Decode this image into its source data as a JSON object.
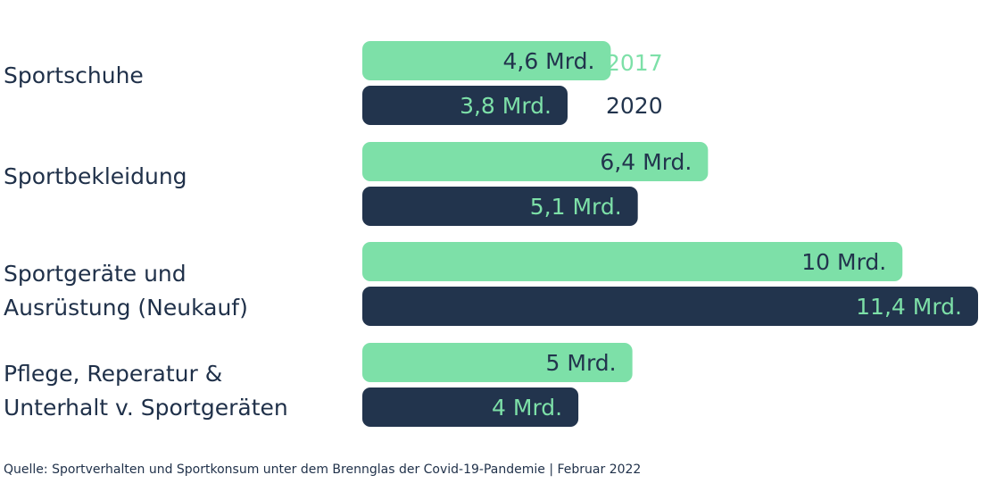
{
  "colors": {
    "2017": "#7de0a8",
    "2020": "#22344d",
    "text_dark": "#22344d",
    "text_light": "#7de0a8"
  },
  "chart_data": {
    "type": "bar",
    "orientation": "horizontal",
    "categories": [
      "Sportschuhe",
      "Sportbekleidung",
      "Sportgeräte und\nAusrüstung (Neukauf)",
      "Pflege, Reperatur &\nUnterhalt v. Sportgeräten"
    ],
    "series": [
      {
        "name": "2017",
        "values": [
          4.6,
          6.4,
          10,
          5
        ],
        "labels": [
          "4,6 Mrd.",
          "6,4 Mrd.",
          "10 Mrd.",
          "5 Mrd."
        ]
      },
      {
        "name": "2020",
        "values": [
          3.8,
          5.1,
          11.4,
          4
        ],
        "labels": [
          "3,8 Mrd.",
          "5,1 Mrd.",
          "11,4 Mrd.",
          "4 Mrd."
        ]
      }
    ],
    "xlim": [
      0,
      11.4
    ],
    "legend_position": "right-of-first-category",
    "grid": false
  },
  "source": "Quelle: Sportverhalten und Sportkonsum unter dem Brennglas der Covid-19-Pandemie | Februar 2022"
}
